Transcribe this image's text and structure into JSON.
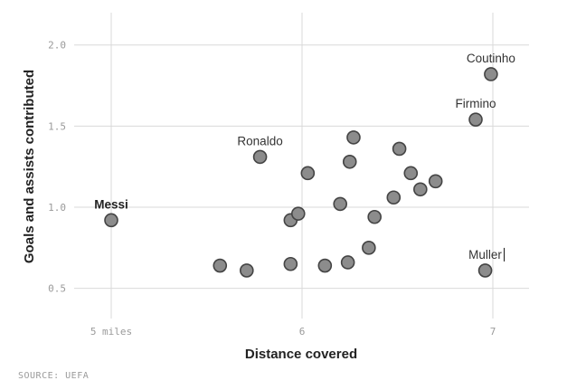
{
  "chart_data": {
    "type": "scatter",
    "title": "",
    "xlabel": "Distance covered",
    "ylabel": "Goals and assists contributed",
    "xlim": [
      5,
      7.2
    ],
    "ylim": [
      0.35,
      2.15
    ],
    "x_ticks": [
      {
        "value": 5,
        "label": "5 miles"
      },
      {
        "value": 6,
        "label": "6"
      },
      {
        "value": 7,
        "label": "7"
      }
    ],
    "y_ticks": [
      {
        "value": 0.5,
        "label": "0.5"
      },
      {
        "value": 1.0,
        "label": "1.0"
      },
      {
        "value": 1.5,
        "label": "1.5"
      },
      {
        "value": 2.0,
        "label": "2.0"
      }
    ],
    "grid": true,
    "points": [
      {
        "x": 5.0,
        "y": 0.92,
        "label": "Messi",
        "bold": true
      },
      {
        "x": 5.78,
        "y": 1.31,
        "label": "Ronaldo"
      },
      {
        "x": 6.99,
        "y": 1.82,
        "label": "Coutinho"
      },
      {
        "x": 6.91,
        "y": 1.54,
        "label": "Firmino"
      },
      {
        "x": 6.96,
        "y": 0.61,
        "label": "Muller"
      },
      {
        "x": 5.57,
        "y": 0.64
      },
      {
        "x": 5.71,
        "y": 0.61
      },
      {
        "x": 5.94,
        "y": 0.65
      },
      {
        "x": 5.94,
        "y": 0.92
      },
      {
        "x": 5.98,
        "y": 0.96
      },
      {
        "x": 6.03,
        "y": 1.21
      },
      {
        "x": 6.12,
        "y": 0.64
      },
      {
        "x": 6.2,
        "y": 1.02
      },
      {
        "x": 6.24,
        "y": 0.66
      },
      {
        "x": 6.25,
        "y": 1.28
      },
      {
        "x": 6.27,
        "y": 1.43
      },
      {
        "x": 6.35,
        "y": 0.75
      },
      {
        "x": 6.38,
        "y": 0.94
      },
      {
        "x": 6.48,
        "y": 1.06
      },
      {
        "x": 6.51,
        "y": 1.36
      },
      {
        "x": 6.57,
        "y": 1.21
      },
      {
        "x": 6.62,
        "y": 1.11
      },
      {
        "x": 6.7,
        "y": 1.16
      }
    ],
    "source": "SOURCE: UEFA"
  }
}
